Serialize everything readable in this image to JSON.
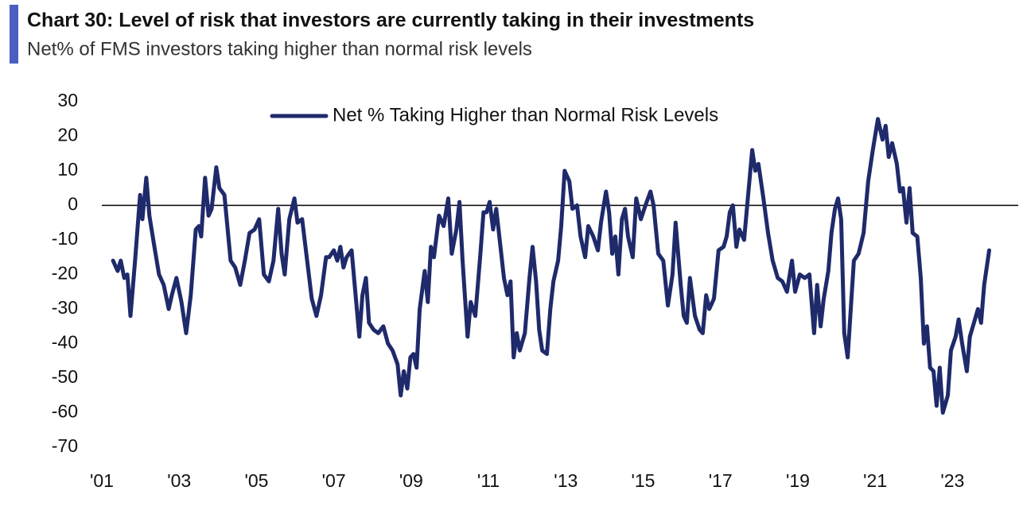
{
  "chart_data": {
    "type": "line",
    "title": "Chart 30: Level of risk that investors are currently taking in their investments",
    "subtitle": "Net% of FMS investors taking higher than normal risk levels",
    "legend": "top",
    "xlim": [
      2001,
      2024.7
    ],
    "ylim": [
      -70,
      30
    ],
    "xticks": [
      {
        "value": 2001,
        "label": "'01"
      },
      {
        "value": 2003,
        "label": "'03"
      },
      {
        "value": 2005,
        "label": "'05"
      },
      {
        "value": 2007,
        "label": "'07"
      },
      {
        "value": 2009,
        "label": "'09"
      },
      {
        "value": 2011,
        "label": "'11"
      },
      {
        "value": 2013,
        "label": "'13"
      },
      {
        "value": 2015,
        "label": "'15"
      },
      {
        "value": 2017,
        "label": "'17"
      },
      {
        "value": 2019,
        "label": "'19"
      },
      {
        "value": 2021,
        "label": "'21"
      },
      {
        "value": 2023,
        "label": "'23"
      }
    ],
    "yticks": [
      30,
      20,
      10,
      0,
      -10,
      -20,
      -30,
      -40,
      -50,
      -60,
      -70
    ],
    "x": [
      2001.29,
      2001.41,
      2001.49,
      2001.58,
      2001.66,
      2001.74,
      2001.86,
      2001.99,
      2002.05,
      2002.15,
      2002.23,
      2002.36,
      2002.48,
      2002.6,
      2002.73,
      2002.81,
      2002.93,
      2003.06,
      2003.18,
      2003.3,
      2003.43,
      2003.51,
      2003.57,
      2003.67,
      2003.76,
      2003.84,
      2003.96,
      2004.04,
      2004.17,
      2004.33,
      2004.45,
      2004.58,
      2004.7,
      2004.82,
      2004.95,
      2005.07,
      2005.19,
      2005.32,
      2005.44,
      2005.56,
      2005.65,
      2005.73,
      2005.85,
      2005.98,
      2006.06,
      2006.18,
      2006.3,
      2006.43,
      2006.55,
      2006.67,
      2006.8,
      2006.88,
      2007.0,
      2007.09,
      2007.17,
      2007.25,
      2007.33,
      2007.46,
      2007.58,
      2007.66,
      2007.74,
      2007.83,
      2007.91,
      2008.03,
      2008.15,
      2008.28,
      2008.4,
      2008.52,
      2008.65,
      2008.73,
      2008.81,
      2008.9,
      2008.98,
      2009.06,
      2009.14,
      2009.22,
      2009.35,
      2009.43,
      2009.51,
      2009.59,
      2009.72,
      2009.84,
      2009.96,
      2010.05,
      2010.17,
      2010.25,
      2010.33,
      2010.46,
      2010.54,
      2010.66,
      2010.79,
      2010.87,
      2010.95,
      2011.03,
      2011.12,
      2011.2,
      2011.28,
      2011.4,
      2011.49,
      2011.57,
      2011.65,
      2011.73,
      2011.81,
      2011.94,
      2012.06,
      2012.14,
      2012.23,
      2012.31,
      2012.39,
      2012.51,
      2012.6,
      2012.68,
      2012.8,
      2012.88,
      2012.97,
      2013.09,
      2013.17,
      2013.29,
      2013.38,
      2013.5,
      2013.58,
      2013.71,
      2013.83,
      2013.91,
      2014.04,
      2014.12,
      2014.2,
      2014.28,
      2014.36,
      2014.45,
      2014.53,
      2014.61,
      2014.73,
      2014.82,
      2014.94,
      2015.06,
      2015.19,
      2015.27,
      2015.39,
      2015.52,
      2015.64,
      2015.76,
      2015.84,
      2015.97,
      2016.05,
      2016.13,
      2016.21,
      2016.34,
      2016.46,
      2016.54,
      2016.63,
      2016.71,
      2016.83,
      2016.95,
      2017.08,
      2017.16,
      2017.24,
      2017.32,
      2017.41,
      2017.49,
      2017.61,
      2017.69,
      2017.82,
      2017.9,
      2017.98,
      2018.11,
      2018.23,
      2018.35,
      2018.48,
      2018.6,
      2018.72,
      2018.85,
      2018.93,
      2019.05,
      2019.18,
      2019.3,
      2019.42,
      2019.5,
      2019.59,
      2019.67,
      2019.79,
      2019.87,
      2019.96,
      2020.04,
      2020.12,
      2020.2,
      2020.29,
      2020.37,
      2020.45,
      2020.57,
      2020.7,
      2020.82,
      2020.94,
      2021.07,
      2021.19,
      2021.27,
      2021.35,
      2021.44,
      2021.56,
      2021.64,
      2021.72,
      2021.81,
      2021.89,
      2021.97,
      2022.09,
      2022.18,
      2022.26,
      2022.34,
      2022.42,
      2022.51,
      2022.59,
      2022.67,
      2022.75,
      2022.88,
      2022.96,
      2023.08,
      2023.16,
      2023.25,
      2023.37,
      2023.45,
      2023.58,
      2023.66,
      2023.74,
      2023.82,
      2023.95
    ],
    "series": [
      {
        "name": "Net % Taking Higher than Normal Risk Levels",
        "color": "#1f2a6b",
        "values": [
          -16,
          -19,
          -16,
          -21,
          -20,
          -32,
          -16,
          3,
          -4,
          8,
          -3,
          -12,
          -20,
          -23,
          -30,
          -26,
          -21,
          -28,
          -37,
          -26,
          -7,
          -6,
          -9,
          8,
          -3,
          -1,
          11,
          5,
          3,
          -16,
          -18,
          -23,
          -16,
          -8,
          -7,
          -4,
          -20,
          -22,
          -16,
          -1,
          -14,
          -20,
          -4,
          2,
          -5,
          -4,
          -15,
          -27,
          -32,
          -26,
          -15,
          -15,
          -13,
          -16,
          -12,
          -18,
          -15,
          -13,
          -28,
          -38,
          -26,
          -21,
          -34,
          -36,
          -37,
          -35,
          -40,
          -42,
          -46,
          -55,
          -48,
          -53,
          -44,
          -43,
          -47,
          -30,
          -19,
          -28,
          -12,
          -15,
          -3,
          -6,
          2,
          -14,
          -7,
          1,
          -16,
          -38,
          -28,
          -32,
          -14,
          -2,
          -2,
          1,
          -7,
          -1,
          -9,
          -21,
          -26,
          -22,
          -44,
          -37,
          -42,
          -37,
          -21,
          -12,
          -22,
          -36,
          -42,
          -43,
          -30,
          -22,
          -16,
          -6,
          10,
          7,
          -1,
          0,
          -9,
          -15,
          -6,
          -9,
          -13,
          -5,
          4,
          -2,
          -14,
          -9,
          -20,
          -4,
          -1,
          -9,
          -15,
          2,
          -4,
          0,
          4,
          0,
          -14,
          -16,
          -29,
          -20,
          -5,
          -23,
          -32,
          -34,
          -21,
          -32,
          -36,
          -37,
          -26,
          -30,
          -27,
          -13,
          -12,
          -9,
          -2,
          0,
          -12,
          -7,
          -10,
          0,
          16,
          10,
          12,
          2,
          -8,
          -16,
          -21,
          -22,
          -25,
          -16,
          -25,
          -20,
          -21,
          -20,
          -37,
          -23,
          -35,
          -27,
          -19,
          -8,
          -1,
          2,
          -4,
          -37,
          -44,
          -30,
          -16,
          -14,
          -8,
          7,
          16,
          25,
          19,
          23,
          14,
          18,
          12,
          4,
          5,
          -5,
          5,
          -8,
          -9,
          -21,
          -40,
          -35,
          -47,
          -48,
          -58,
          -47,
          -60,
          -55,
          -42,
          -38,
          -33,
          -40,
          -48,
          -38,
          -33,
          -30,
          -34,
          -23,
          -13
        ]
      }
    ]
  }
}
